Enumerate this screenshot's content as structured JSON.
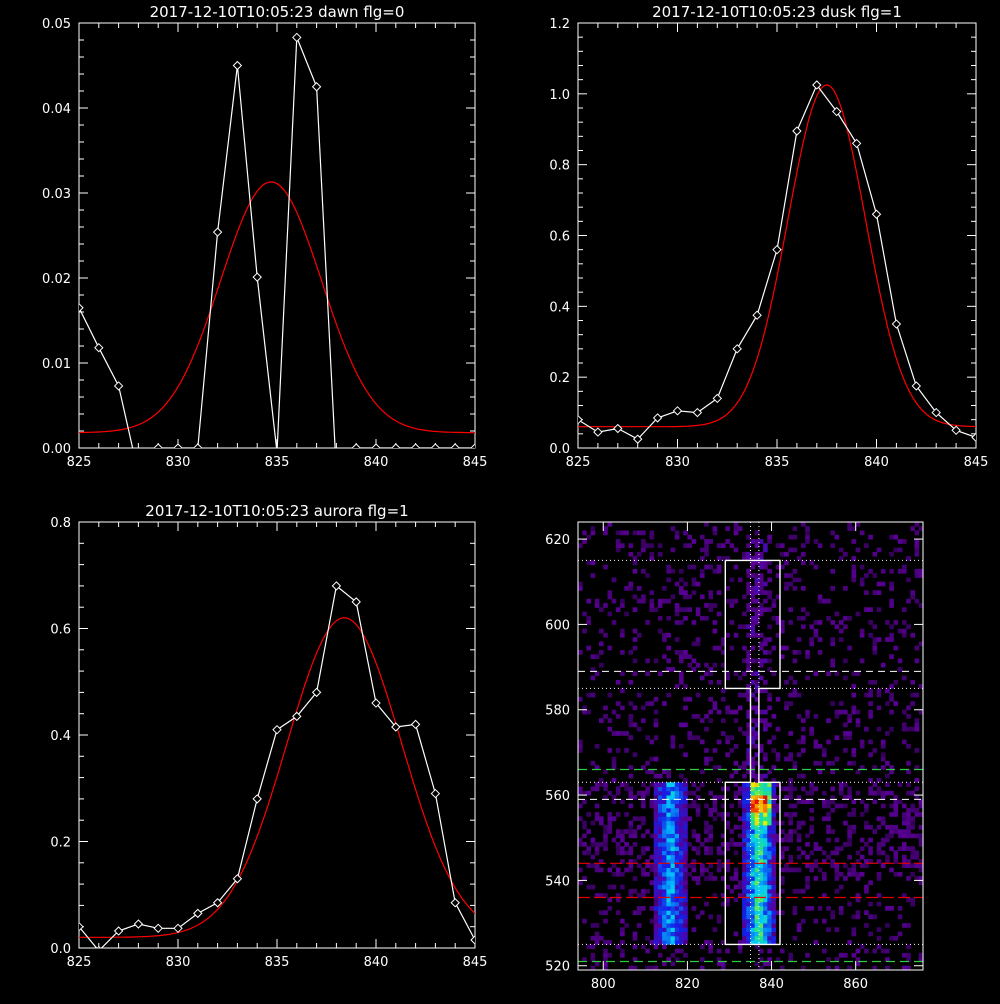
{
  "chart_data": [
    {
      "type": "line",
      "title": "2017-12-10T10:05:23 dawn flg=0",
      "xlabel": "",
      "ylabel": "",
      "xlim": [
        825,
        845
      ],
      "ylim": [
        0,
        0.05
      ],
      "xticks": [
        825,
        830,
        835,
        840,
        845
      ],
      "yticks": [
        0.0,
        0.01,
        0.02,
        0.03,
        0.04,
        0.05
      ],
      "ytick_labels": [
        "0.00",
        "0.01",
        "0.02",
        "0.03",
        "0.04",
        "0.05"
      ],
      "series": [
        {
          "color": "#ffffff",
          "markers": "diamond",
          "x": [
            825,
            826,
            827,
            828,
            829,
            830,
            831,
            832,
            833,
            834,
            835,
            836,
            837,
            838,
            839,
            840,
            841,
            842,
            843,
            844,
            845
          ],
          "y": [
            0.0165,
            0.0118,
            0.0073,
            -0.003,
            0,
            0,
            0,
            0.0254,
            0.045,
            0.0201,
            -0.0005,
            0.0483,
            0.0425,
            -0.003,
            0,
            0,
            0,
            0,
            0,
            0,
            0
          ]
        },
        {
          "color": "#ff0000",
          "type": "gaussian-fit",
          "fit": {
            "amp": 0.0295,
            "center": 834.7,
            "sigma": 2.55,
            "offset": 0.0018
          }
        }
      ]
    },
    {
      "type": "line",
      "title": "2017-12-10T10:05:23 dusk flg=1",
      "xlabel": "",
      "ylabel": "",
      "xlim": [
        825,
        845
      ],
      "ylim": [
        0,
        1.2
      ],
      "xticks": [
        825,
        830,
        835,
        840,
        845
      ],
      "yticks": [
        0.0,
        0.2,
        0.4,
        0.6,
        0.8,
        1.0,
        1.2
      ],
      "ytick_labels": [
        "0.0",
        "0.2",
        "0.4",
        "0.6",
        "0.8",
        "1.0",
        "1.2"
      ],
      "series": [
        {
          "color": "#ffffff",
          "markers": "diamond",
          "x": [
            825,
            826,
            827,
            828,
            829,
            830,
            831,
            832,
            833,
            834,
            835,
            836,
            837,
            838,
            839,
            840,
            841,
            842,
            843,
            844,
            845
          ],
          "y": [
            0.08,
            0.045,
            0.055,
            0.025,
            0.085,
            0.105,
            0.1,
            0.14,
            0.28,
            0.375,
            0.56,
            0.895,
            1.025,
            0.95,
            0.86,
            0.66,
            0.35,
            0.175,
            0.1,
            0.05,
            0.03
          ]
        },
        {
          "color": "#ff0000",
          "type": "gaussian-fit",
          "fit": {
            "amp": 0.965,
            "center": 837.5,
            "sigma": 1.95,
            "offset": 0.06
          }
        }
      ]
    },
    {
      "type": "line",
      "title": "2017-12-10T10:05:23 aurora flg=1",
      "xlabel": "",
      "ylabel": "",
      "xlim": [
        825,
        845
      ],
      "ylim": [
        0,
        0.8
      ],
      "xticks": [
        825,
        830,
        835,
        840,
        845
      ],
      "yticks": [
        0.0,
        0.2,
        0.4,
        0.6,
        0.8
      ],
      "ytick_labels": [
        "0.0",
        "0.2",
        "0.4",
        "0.6",
        "0.8"
      ],
      "series": [
        {
          "color": "#ffffff",
          "markers": "diamond",
          "x": [
            825,
            826,
            827,
            828,
            829,
            830,
            831,
            832,
            833,
            834,
            835,
            836,
            837,
            838,
            839,
            840,
            841,
            842,
            843,
            844,
            845
          ],
          "y": [
            0.04,
            -0.005,
            0.032,
            0.045,
            0.037,
            0.037,
            0.065,
            0.085,
            0.13,
            0.28,
            0.41,
            0.435,
            0.48,
            0.68,
            0.65,
            0.46,
            0.415,
            0.42,
            0.29,
            0.085,
            0.015
          ]
        },
        {
          "color": "#ff0000",
          "type": "gaussian-fit",
          "fit": {
            "amp": 0.6,
            "center": 838.4,
            "sigma": 2.9,
            "offset": 0.02
          }
        }
      ]
    },
    {
      "type": "heatmap",
      "title": "",
      "xlabel": "",
      "ylabel": "",
      "xlim": [
        794,
        876
      ],
      "ylim": [
        519,
        624
      ],
      "xticks": [
        800,
        820,
        840,
        860
      ],
      "yticks": [
        520,
        540,
        560,
        580,
        600,
        620
      ],
      "colormap": "rainbow",
      "bright_columns": [
        {
          "x_range": [
            812,
            820
          ],
          "y_range": [
            525,
            563
          ]
        },
        {
          "x_range": [
            833,
            841
          ],
          "y_range": [
            525,
            563
          ]
        }
      ],
      "peak": {
        "x": 837,
        "y": 558
      },
      "white_box_outline": [
        [
          829,
          615
        ],
        [
          842,
          615
        ],
        [
          842,
          585
        ],
        [
          837,
          585
        ],
        [
          837,
          563
        ],
        [
          842,
          563
        ],
        [
          842,
          525
        ],
        [
          829,
          525
        ],
        [
          829,
          563
        ],
        [
          835,
          563
        ],
        [
          835,
          585
        ],
        [
          829,
          585
        ],
        [
          829,
          615
        ]
      ],
      "dotted_lines_white": {
        "y": [
          615,
          585,
          563,
          525
        ],
        "x": [
          835,
          837
        ]
      },
      "dashed_lines_white": {
        "y": [
          589,
          559
        ]
      },
      "dashed_lines_green": {
        "y": [
          566,
          521
        ]
      },
      "dashed_lines_red": {
        "y": [
          544,
          536
        ]
      }
    }
  ]
}
